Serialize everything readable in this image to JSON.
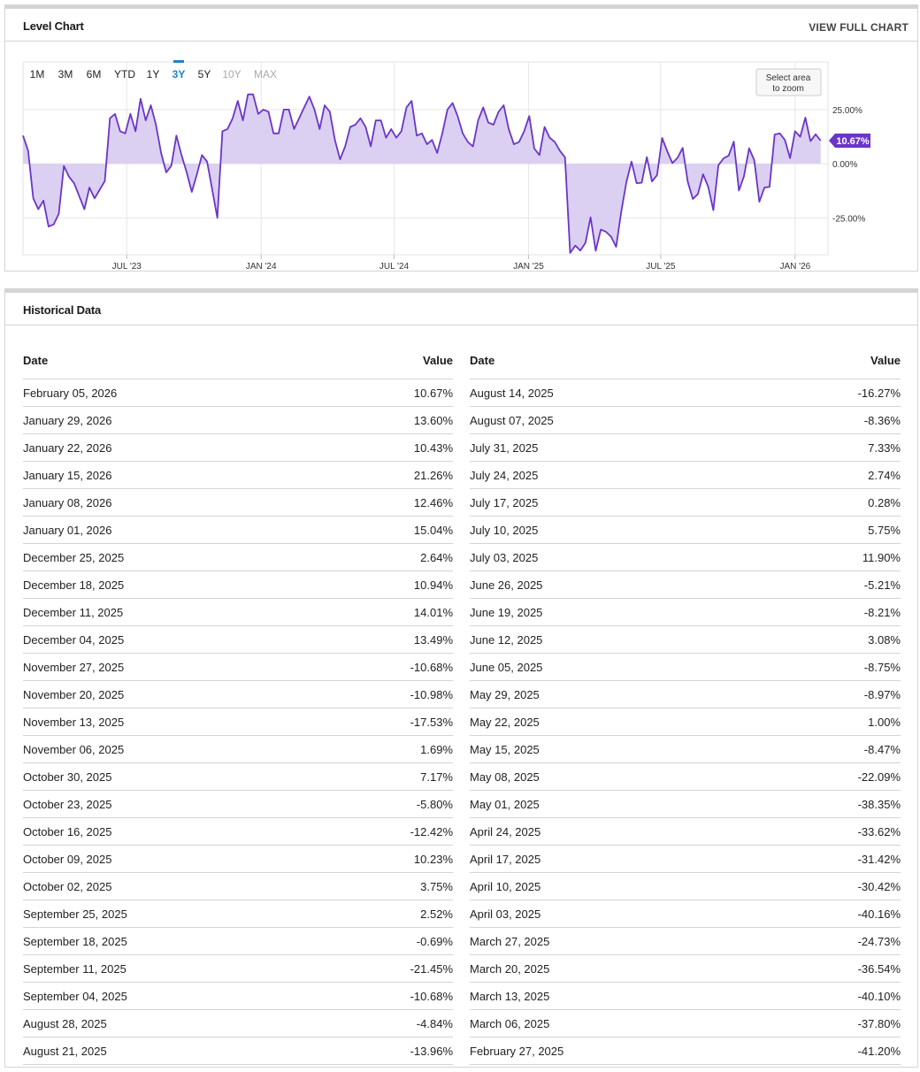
{
  "chart_panel": {
    "title": "Level Chart",
    "link": "VIEW FULL CHART",
    "ranges": [
      "1M",
      "3M",
      "6M",
      "YTD",
      "1Y",
      "3Y",
      "5Y",
      "10Y",
      "MAX"
    ],
    "active_range": "3Y",
    "disabled_ranges": [
      "10Y",
      "MAX"
    ],
    "zoom_hint": [
      "Select area",
      "to zoom"
    ],
    "current_label": "10.67%"
  },
  "chart_data": {
    "type": "area",
    "title": "",
    "xlabel": "",
    "ylabel": "",
    "x_range": [
      "2023-02-09",
      "2026-02-15"
    ],
    "ylim": [
      -42,
      47
    ],
    "y_ticks": [
      {
        "value": 25,
        "label": "25.00%"
      },
      {
        "value": 0,
        "label": "0.00%"
      },
      {
        "value": -25,
        "label": "-25.00%"
      }
    ],
    "x_ticks": [
      {
        "date": "2023-07-01",
        "label": "JUL '23"
      },
      {
        "date": "2024-01-01",
        "label": "JAN '24"
      },
      {
        "date": "2024-07-01",
        "label": "JUL '24"
      },
      {
        "date": "2025-01-01",
        "label": "JAN '25"
      },
      {
        "date": "2025-07-01",
        "label": "JUL '25"
      },
      {
        "date": "2026-01-01",
        "label": "JAN '26"
      }
    ],
    "grid": true,
    "colors": {
      "line": "#6a35c9",
      "fill": "#d9cdf1",
      "label_bg": "#6a35c9"
    },
    "series": [
      {
        "name": "",
        "points": [
          [
            "2023-02-09",
            13
          ],
          [
            "2023-02-16",
            6
          ],
          [
            "2023-02-23",
            -16
          ],
          [
            "2023-03-02",
            -21
          ],
          [
            "2023-03-09",
            -17
          ],
          [
            "2023-03-16",
            -29
          ],
          [
            "2023-03-23",
            -28
          ],
          [
            "2023-03-30",
            -23
          ],
          [
            "2023-04-06",
            -1
          ],
          [
            "2023-04-13",
            -6
          ],
          [
            "2023-04-20",
            -9
          ],
          [
            "2023-04-27",
            -15
          ],
          [
            "2023-05-04",
            -21
          ],
          [
            "2023-05-11",
            -11
          ],
          [
            "2023-05-18",
            -16
          ],
          [
            "2023-05-25",
            -12
          ],
          [
            "2023-06-01",
            -8
          ],
          [
            "2023-06-08",
            21
          ],
          [
            "2023-06-15",
            23
          ],
          [
            "2023-06-22",
            15
          ],
          [
            "2023-06-29",
            14
          ],
          [
            "2023-07-06",
            23
          ],
          [
            "2023-07-13",
            15
          ],
          [
            "2023-07-20",
            30
          ],
          [
            "2023-07-27",
            20
          ],
          [
            "2023-08-03",
            27
          ],
          [
            "2023-08-10",
            18
          ],
          [
            "2023-08-17",
            5
          ],
          [
            "2023-08-24",
            -4
          ],
          [
            "2023-08-31",
            -1
          ],
          [
            "2023-09-07",
            13
          ],
          [
            "2023-09-14",
            4
          ],
          [
            "2023-09-21",
            -4
          ],
          [
            "2023-09-28",
            -13
          ],
          [
            "2023-10-05",
            -5
          ],
          [
            "2023-10-12",
            4
          ],
          [
            "2023-10-19",
            1
          ],
          [
            "2023-10-26",
            -12
          ],
          [
            "2023-11-02",
            -25
          ],
          [
            "2023-11-09",
            15
          ],
          [
            "2023-11-16",
            16
          ],
          [
            "2023-11-23",
            21
          ],
          [
            "2023-11-30",
            29
          ],
          [
            "2023-12-07",
            20
          ],
          [
            "2023-12-14",
            32
          ],
          [
            "2023-12-21",
            32
          ],
          [
            "2023-12-28",
            23
          ],
          [
            "2024-01-04",
            25
          ],
          [
            "2024-01-11",
            24
          ],
          [
            "2024-01-18",
            14
          ],
          [
            "2024-01-25",
            14
          ],
          [
            "2024-02-01",
            25
          ],
          [
            "2024-02-08",
            25
          ],
          [
            "2024-02-15",
            16
          ],
          [
            "2024-02-22",
            21
          ],
          [
            "2024-02-29",
            26
          ],
          [
            "2024-03-07",
            31
          ],
          [
            "2024-03-14",
            25
          ],
          [
            "2024-03-21",
            16
          ],
          [
            "2024-03-28",
            27
          ],
          [
            "2024-04-04",
            24
          ],
          [
            "2024-04-11",
            11
          ],
          [
            "2024-04-18",
            2
          ],
          [
            "2024-04-25",
            8
          ],
          [
            "2024-05-02",
            17
          ],
          [
            "2024-05-09",
            18
          ],
          [
            "2024-05-16",
            21
          ],
          [
            "2024-05-23",
            17
          ],
          [
            "2024-05-30",
            8
          ],
          [
            "2024-06-06",
            20
          ],
          [
            "2024-06-13",
            20
          ],
          [
            "2024-06-20",
            12
          ],
          [
            "2024-06-27",
            16
          ],
          [
            "2024-07-04",
            12
          ],
          [
            "2024-07-11",
            15
          ],
          [
            "2024-07-18",
            26
          ],
          [
            "2024-07-25",
            29
          ],
          [
            "2024-08-01",
            13
          ],
          [
            "2024-08-08",
            14
          ],
          [
            "2024-08-15",
            9
          ],
          [
            "2024-08-22",
            11
          ],
          [
            "2024-08-29",
            5
          ],
          [
            "2024-09-05",
            14
          ],
          [
            "2024-09-12",
            25
          ],
          [
            "2024-09-19",
            28
          ],
          [
            "2024-09-26",
            22
          ],
          [
            "2024-10-03",
            14
          ],
          [
            "2024-10-10",
            10
          ],
          [
            "2024-10-17",
            8
          ],
          [
            "2024-10-24",
            20
          ],
          [
            "2024-10-31",
            26
          ],
          [
            "2024-11-07",
            19
          ],
          [
            "2024-11-14",
            18
          ],
          [
            "2024-11-21",
            24
          ],
          [
            "2024-11-28",
            27
          ],
          [
            "2024-12-05",
            16
          ],
          [
            "2024-12-12",
            9
          ],
          [
            "2024-12-19",
            10
          ],
          [
            "2024-12-26",
            15
          ],
          [
            "2025-01-02",
            22
          ],
          [
            "2025-01-09",
            7
          ],
          [
            "2025-01-16",
            4
          ],
          [
            "2025-01-23",
            17
          ],
          [
            "2025-01-30",
            12
          ],
          [
            "2025-02-06",
            10
          ],
          [
            "2025-02-13",
            6
          ],
          [
            "2025-02-20",
            3
          ],
          [
            "2025-02-27",
            -41.2
          ],
          [
            "2025-03-06",
            -37.8
          ],
          [
            "2025-03-13",
            -40.1
          ],
          [
            "2025-03-20",
            -36.54
          ],
          [
            "2025-03-27",
            -24.73
          ],
          [
            "2025-04-03",
            -40.16
          ],
          [
            "2025-04-10",
            -30.42
          ],
          [
            "2025-04-17",
            -31.42
          ],
          [
            "2025-04-24",
            -33.62
          ],
          [
            "2025-05-01",
            -38.35
          ],
          [
            "2025-05-08",
            -22.09
          ],
          [
            "2025-05-15",
            -8.47
          ],
          [
            "2025-05-22",
            1.0
          ],
          [
            "2025-05-29",
            -8.97
          ],
          [
            "2025-06-05",
            -8.75
          ],
          [
            "2025-06-12",
            3.08
          ],
          [
            "2025-06-19",
            -8.21
          ],
          [
            "2025-06-26",
            -5.21
          ],
          [
            "2025-07-03",
            11.9
          ],
          [
            "2025-07-10",
            5.75
          ],
          [
            "2025-07-17",
            0.28
          ],
          [
            "2025-07-24",
            2.74
          ],
          [
            "2025-07-31",
            7.33
          ],
          [
            "2025-08-07",
            -8.36
          ],
          [
            "2025-08-14",
            -16.27
          ],
          [
            "2025-08-21",
            -13.96
          ],
          [
            "2025-08-28",
            -4.84
          ],
          [
            "2025-09-04",
            -10.68
          ],
          [
            "2025-09-11",
            -21.45
          ],
          [
            "2025-09-18",
            -0.69
          ],
          [
            "2025-09-25",
            2.52
          ],
          [
            "2025-10-02",
            3.75
          ],
          [
            "2025-10-09",
            10.23
          ],
          [
            "2025-10-16",
            -12.42
          ],
          [
            "2025-10-23",
            -5.8
          ],
          [
            "2025-10-30",
            7.17
          ],
          [
            "2025-11-06",
            1.69
          ],
          [
            "2025-11-13",
            -17.53
          ],
          [
            "2025-11-20",
            -10.98
          ],
          [
            "2025-11-27",
            -10.68
          ],
          [
            "2025-12-04",
            13.49
          ],
          [
            "2025-12-11",
            14.01
          ],
          [
            "2025-12-18",
            10.94
          ],
          [
            "2025-12-25",
            2.64
          ],
          [
            "2026-01-01",
            15.04
          ],
          [
            "2026-01-08",
            12.46
          ],
          [
            "2026-01-15",
            21.26
          ],
          [
            "2026-01-22",
            10.43
          ],
          [
            "2026-01-29",
            13.6
          ],
          [
            "2026-02-05",
            10.67
          ]
        ]
      }
    ]
  },
  "historical": {
    "title": "Historical Data",
    "headers": {
      "date": "Date",
      "value": "Value"
    },
    "left_rows": [
      {
        "date": "February 05, 2026",
        "value": "10.67%"
      },
      {
        "date": "January 29, 2026",
        "value": "13.60%"
      },
      {
        "date": "January 22, 2026",
        "value": "10.43%"
      },
      {
        "date": "January 15, 2026",
        "value": "21.26%"
      },
      {
        "date": "January 08, 2026",
        "value": "12.46%"
      },
      {
        "date": "January 01, 2026",
        "value": "15.04%"
      },
      {
        "date": "December 25, 2025",
        "value": "2.64%"
      },
      {
        "date": "December 18, 2025",
        "value": "10.94%"
      },
      {
        "date": "December 11, 2025",
        "value": "14.01%"
      },
      {
        "date": "December 04, 2025",
        "value": "13.49%"
      },
      {
        "date": "November 27, 2025",
        "value": "-10.68%"
      },
      {
        "date": "November 20, 2025",
        "value": "-10.98%"
      },
      {
        "date": "November 13, 2025",
        "value": "-17.53%"
      },
      {
        "date": "November 06, 2025",
        "value": "1.69%"
      },
      {
        "date": "October 30, 2025",
        "value": "7.17%"
      },
      {
        "date": "October 23, 2025",
        "value": "-5.80%"
      },
      {
        "date": "October 16, 2025",
        "value": "-12.42%"
      },
      {
        "date": "October 09, 2025",
        "value": "10.23%"
      },
      {
        "date": "October 02, 2025",
        "value": "3.75%"
      },
      {
        "date": "September 25, 2025",
        "value": "2.52%"
      },
      {
        "date": "September 18, 2025",
        "value": "-0.69%"
      },
      {
        "date": "September 11, 2025",
        "value": "-21.45%"
      },
      {
        "date": "September 04, 2025",
        "value": "-10.68%"
      },
      {
        "date": "August 28, 2025",
        "value": "-4.84%"
      },
      {
        "date": "August 21, 2025",
        "value": "-13.96%"
      }
    ],
    "right_rows": [
      {
        "date": "August 14, 2025",
        "value": "-16.27%"
      },
      {
        "date": "August 07, 2025",
        "value": "-8.36%"
      },
      {
        "date": "July 31, 2025",
        "value": "7.33%"
      },
      {
        "date": "July 24, 2025",
        "value": "2.74%"
      },
      {
        "date": "July 17, 2025",
        "value": "0.28%"
      },
      {
        "date": "July 10, 2025",
        "value": "5.75%"
      },
      {
        "date": "July 03, 2025",
        "value": "11.90%"
      },
      {
        "date": "June 26, 2025",
        "value": "-5.21%"
      },
      {
        "date": "June 19, 2025",
        "value": "-8.21%"
      },
      {
        "date": "June 12, 2025",
        "value": "3.08%"
      },
      {
        "date": "June 05, 2025",
        "value": "-8.75%"
      },
      {
        "date": "May 29, 2025",
        "value": "-8.97%"
      },
      {
        "date": "May 22, 2025",
        "value": "1.00%"
      },
      {
        "date": "May 15, 2025",
        "value": "-8.47%"
      },
      {
        "date": "May 08, 2025",
        "value": "-22.09%"
      },
      {
        "date": "May 01, 2025",
        "value": "-38.35%"
      },
      {
        "date": "April 24, 2025",
        "value": "-33.62%"
      },
      {
        "date": "April 17, 2025",
        "value": "-31.42%"
      },
      {
        "date": "April 10, 2025",
        "value": "-30.42%"
      },
      {
        "date": "April 03, 2025",
        "value": "-40.16%"
      },
      {
        "date": "March 27, 2025",
        "value": "-24.73%"
      },
      {
        "date": "March 20, 2025",
        "value": "-36.54%"
      },
      {
        "date": "March 13, 2025",
        "value": "-40.10%"
      },
      {
        "date": "March 06, 2025",
        "value": "-37.80%"
      },
      {
        "date": "February 27, 2025",
        "value": "-41.20%"
      }
    ]
  }
}
